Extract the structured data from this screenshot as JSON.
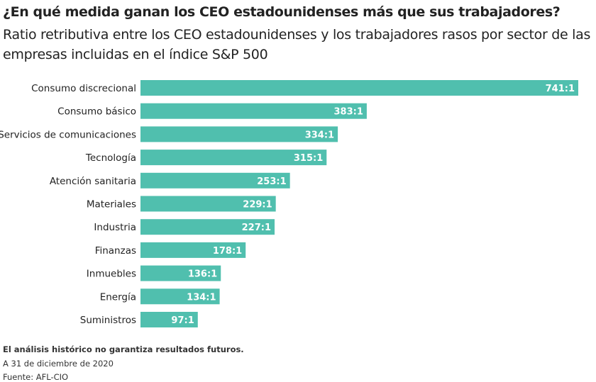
{
  "chart_data": {
    "type": "bar",
    "orientation": "horizontal",
    "title": "¿En qué medida ganan los CEO estadounidenses más que sus trabajadores?",
    "subtitle": "Ratio retributiva entre los CEO estadounidenses y los trabajadores rasos por sector de las empresas incluidas en el índice S&P 500",
    "categories": [
      "Consumo discrecional",
      "Consumo básico",
      "Servicios de comunicaciones",
      "Tecnología",
      "Atención sanitaria",
      "Materiales",
      "Industria",
      "Finanzas",
      "Inmuebles",
      "Energía",
      "Suministros"
    ],
    "values": [
      741,
      383,
      334,
      315,
      253,
      229,
      227,
      178,
      136,
      134,
      97
    ],
    "data_labels": [
      "741:1",
      "383:1",
      "334:1",
      "315:1",
      "253:1",
      "229:1",
      "227:1",
      "178:1",
      "136:1",
      "134:1",
      "97:1"
    ],
    "xlim": [
      0,
      741
    ],
    "grid": false,
    "bar_color": "#50bfae"
  },
  "footer": {
    "disclaimer": "El análisis histórico no garantiza resultados futuros.",
    "date": "A 31 de diciembre de 2020",
    "source": "Fuente: AFL-CIO"
  }
}
